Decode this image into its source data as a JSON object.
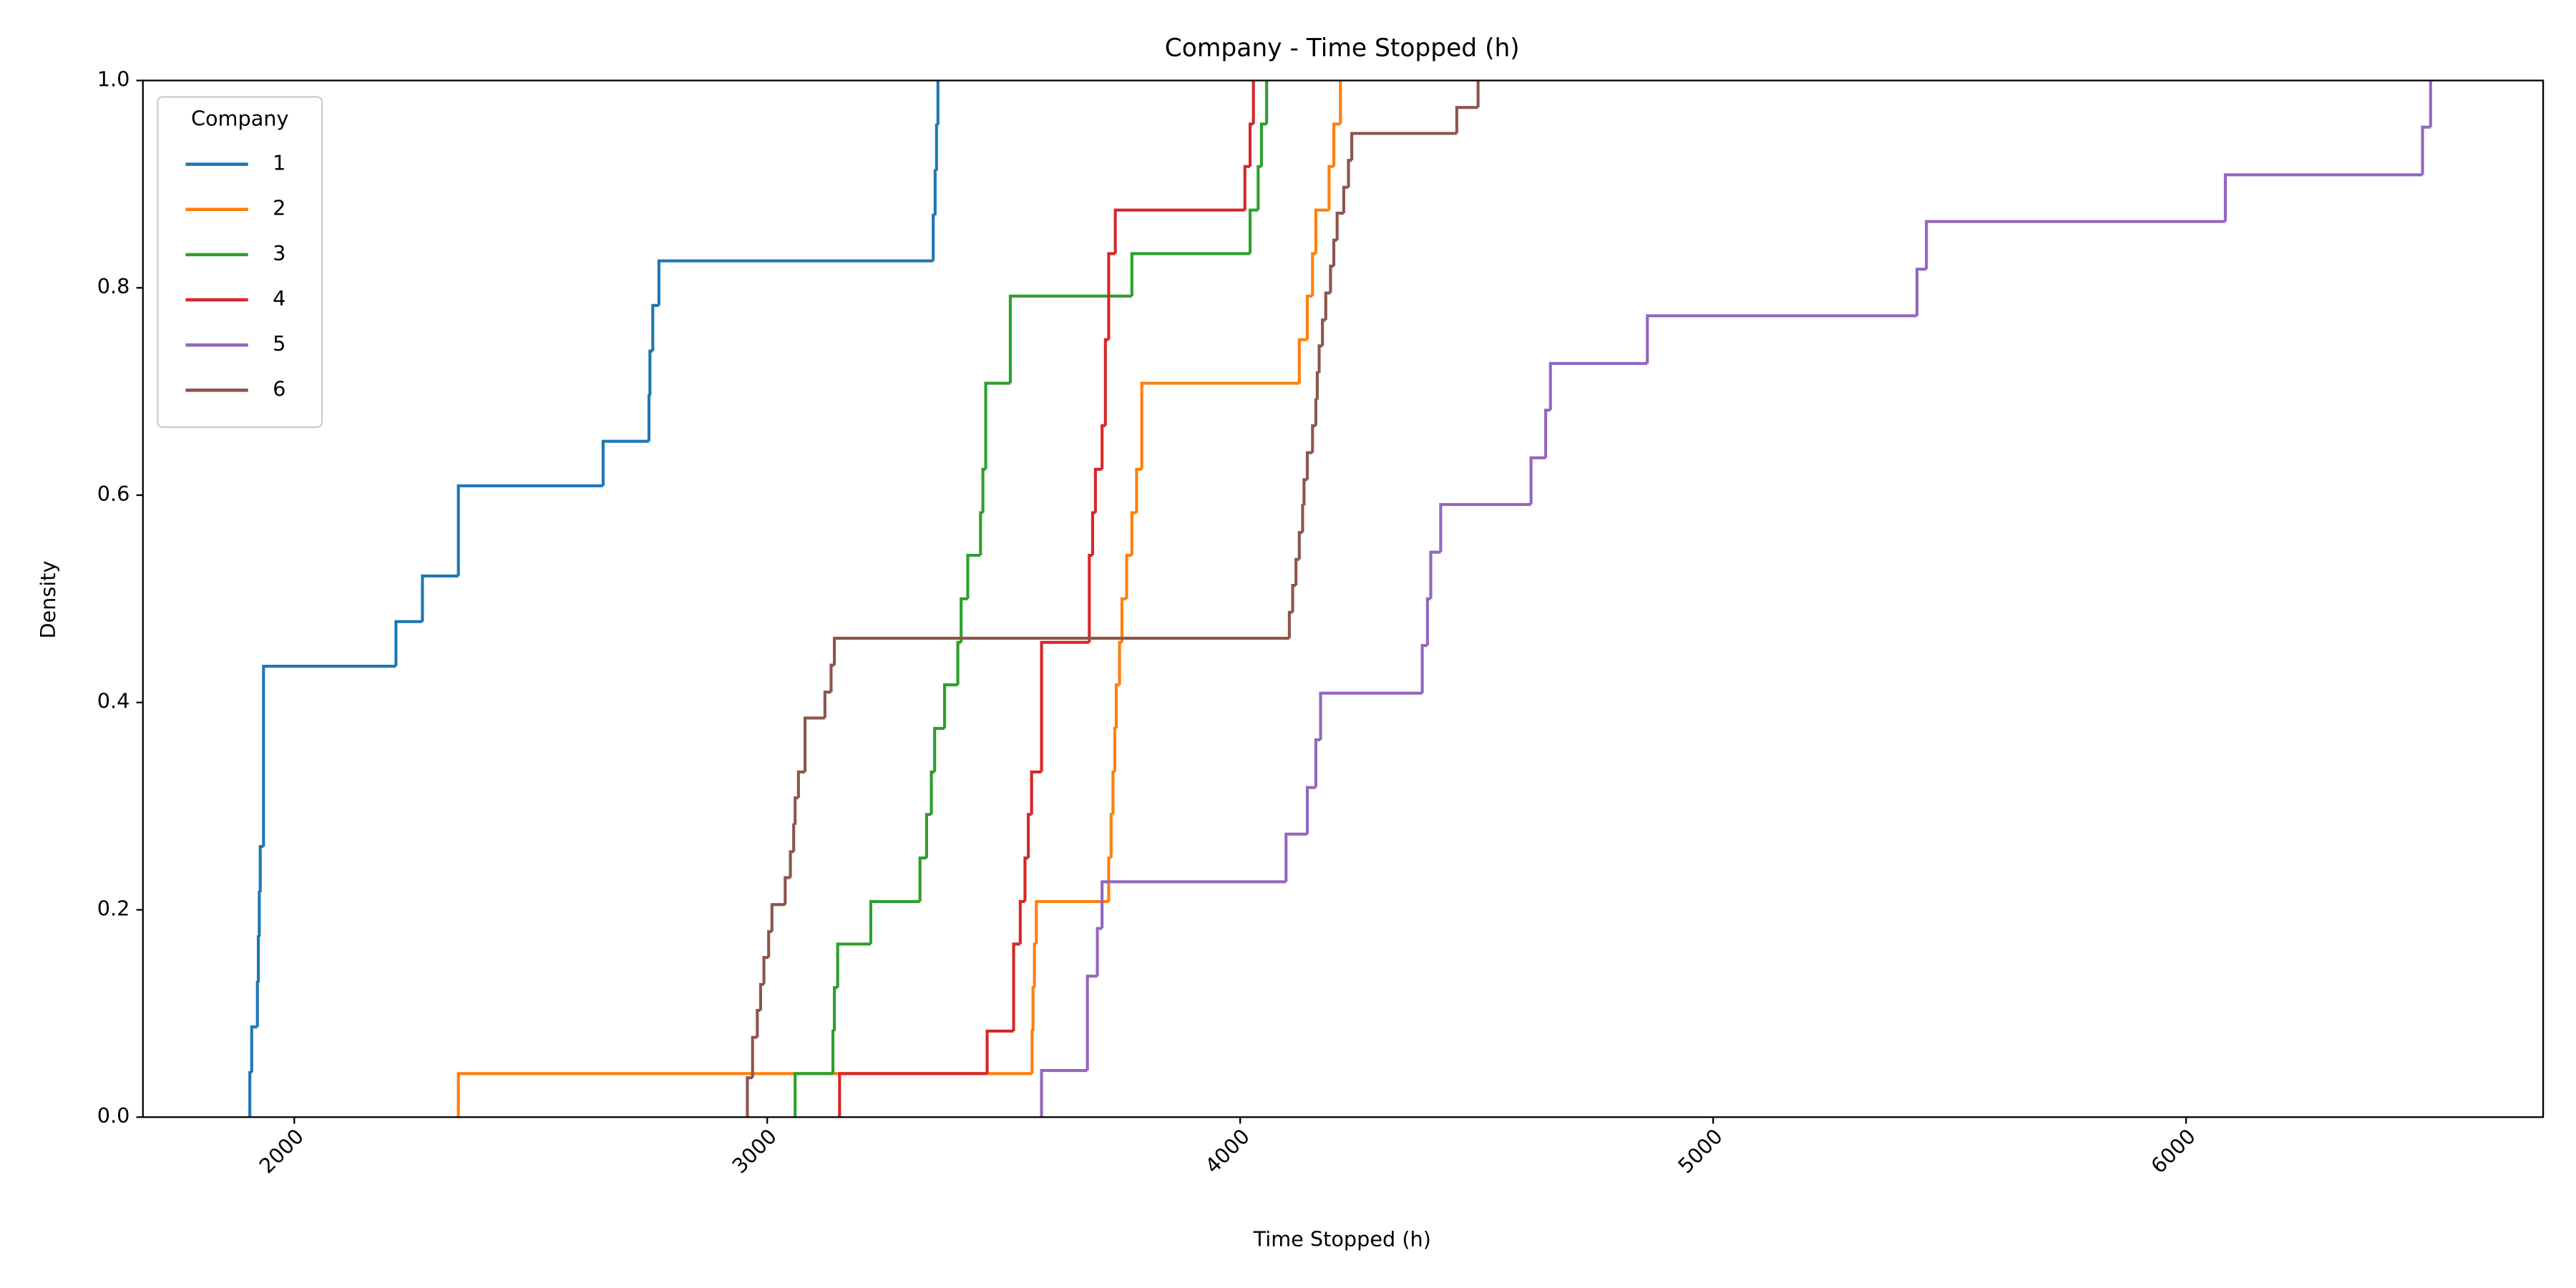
{
  "chart_data": {
    "type": "ecdf",
    "title": "Company - Time Stopped (h)",
    "x_label": "Time Stopped (h)",
    "y_label": "Density",
    "xlim": [
      1680,
      6755
    ],
    "ylim": [
      0,
      1
    ],
    "xticks": [
      2000,
      3000,
      4000,
      5000,
      6000
    ],
    "yticks": [
      {
        "value": 0,
        "label": "0.0"
      },
      0.2,
      0.4,
      0.6,
      0.8,
      {
        "value": 1,
        "label": "1.0"
      }
    ],
    "legend_title": "Company",
    "legend_loc": "upper left",
    "series": [
      {
        "name": "1",
        "color": "#1f77b4",
        "x": [
          1906,
          1910,
          1922,
          1924,
          1926,
          1928,
          1935,
          2215,
          2271,
          2347,
          2653,
          2750,
          2752,
          2758,
          2771,
          3351,
          3355,
          3358,
          3361
        ],
        "values": [
          0.043,
          0.087,
          0.13,
          0.174,
          0.217,
          0.261,
          0.435,
          0.478,
          0.522,
          0.609,
          0.652,
          0.696,
          0.739,
          0.783,
          0.826,
          0.87,
          0.913,
          0.957,
          1.0
        ]
      },
      {
        "name": "2",
        "color": "#ff7f0e",
        "x": [
          2347,
          3560,
          3562,
          3565,
          3569,
          3722,
          3727,
          3731,
          3735,
          3738,
          3745,
          3750,
          3760,
          3771,
          3781,
          3792,
          4125,
          4142,
          4153,
          4160,
          4188,
          4198,
          4212
        ],
        "values": [
          0.042,
          0.083,
          0.125,
          0.167,
          0.208,
          0.25,
          0.292,
          0.333,
          0.375,
          0.417,
          0.458,
          0.5,
          0.542,
          0.583,
          0.625,
          0.708,
          0.75,
          0.792,
          0.833,
          0.875,
          0.917,
          0.958,
          1.0
        ]
      },
      {
        "name": "3",
        "color": "#2ca02c",
        "x": [
          3059,
          3139,
          3142,
          3149,
          3219,
          3323,
          3337,
          3347,
          3354,
          3375,
          3403,
          3410,
          3424,
          3451,
          3456,
          3462,
          3514,
          3771,
          4021,
          4038,
          4045,
          4056
        ],
        "values": [
          0.042,
          0.083,
          0.125,
          0.167,
          0.208,
          0.25,
          0.292,
          0.333,
          0.375,
          0.417,
          0.458,
          0.5,
          0.542,
          0.583,
          0.625,
          0.708,
          0.792,
          0.833,
          0.875,
          0.917,
          0.958,
          1.0
        ]
      },
      {
        "name": "4",
        "color": "#d62728",
        "x": [
          3153,
          3465,
          3521,
          3535,
          3545,
          3552,
          3559,
          3580,
          3681,
          3688,
          3694,
          3708,
          3715,
          3722,
          3736,
          4010,
          4021,
          4028
        ],
        "values": [
          0.042,
          0.083,
          0.167,
          0.208,
          0.25,
          0.292,
          0.333,
          0.458,
          0.542,
          0.583,
          0.625,
          0.667,
          0.75,
          0.833,
          0.875,
          0.917,
          0.958,
          1.0
        ]
      },
      {
        "name": "5",
        "color": "#9467bd",
        "x": [
          3580,
          3677,
          3698,
          3708,
          4097,
          4142,
          4160,
          4170,
          4385,
          4396,
          4403,
          4424,
          4615,
          4646,
          4656,
          4861,
          5431,
          5451,
          6083,
          6500,
          6517
        ],
        "values": [
          0.045,
          0.136,
          0.182,
          0.227,
          0.273,
          0.318,
          0.364,
          0.409,
          0.455,
          0.5,
          0.545,
          0.591,
          0.636,
          0.682,
          0.727,
          0.773,
          0.818,
          0.864,
          0.909,
          0.955,
          1.0
        ]
      },
      {
        "name": "6",
        "color": "#8c564b",
        "x": [
          2958,
          2969,
          2979,
          2986,
          2993,
          3003,
          3010,
          3038,
          3049,
          3056,
          3059,
          3066,
          3080,
          3122,
          3135,
          3142,
          4104,
          4111,
          4118,
          4125,
          4132,
          4135,
          4142,
          4153,
          4160,
          4163,
          4167,
          4174,
          4181,
          4191,
          4198,
          4205,
          4219,
          4229,
          4236,
          4458,
          4503
        ],
        "values": [
          0.038,
          0.077,
          0.103,
          0.128,
          0.154,
          0.179,
          0.205,
          0.231,
          0.256,
          0.282,
          0.308,
          0.333,
          0.385,
          0.41,
          0.436,
          0.462,
          0.487,
          0.513,
          0.538,
          0.564,
          0.59,
          0.615,
          0.641,
          0.667,
          0.692,
          0.718,
          0.744,
          0.769,
          0.795,
          0.821,
          0.846,
          0.872,
          0.897,
          0.923,
          0.949,
          0.974,
          1.0
        ]
      }
    ]
  }
}
